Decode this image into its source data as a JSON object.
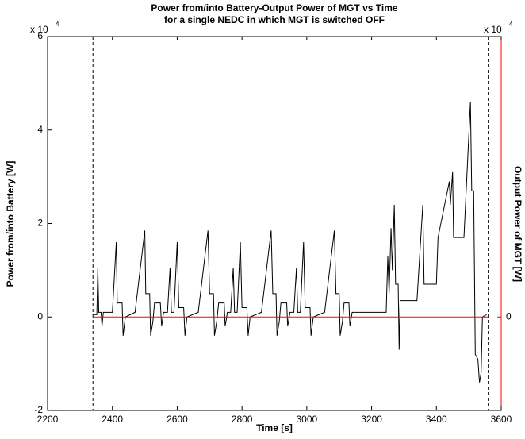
{
  "chart_data": {
    "type": "line",
    "title": [
      "Power from/into Battery-Output Power of MGT vs Time",
      "for a single NEDC in which MGT is switched OFF"
    ],
    "xlabel": "Time [s]",
    "ylabel": "Power from/into Battery [W]",
    "y2label": "Output Power of MGT [W]",
    "y_multiplier": {
      "base": "x 10",
      "power": "4"
    },
    "y2_multiplier": {
      "base": "x 10",
      "power": "4"
    },
    "xlim": [
      2200,
      3600
    ],
    "xticks": [
      2200,
      2400,
      2600,
      2800,
      3000,
      3200,
      3400,
      3600
    ],
    "ylim": [
      -2,
      6
    ],
    "yticks": [
      -2,
      0,
      2,
      4,
      6
    ],
    "y2lim": [
      -2,
      6
    ],
    "y2ticks": [
      0
    ],
    "y2color": "#ff0000",
    "vlines": [
      2340,
      3560
    ],
    "series": [
      {
        "name": "Power from/into Battery",
        "color": "#000000",
        "x": [
          2340,
          2352,
          2355,
          2358,
          2365,
          2368,
          2372,
          2400,
          2412,
          2415,
          2430,
          2433,
          2440,
          2470,
          2500,
          2503,
          2515,
          2518,
          2525,
          2530,
          2548,
          2552,
          2558,
          2570,
          2578,
          2582,
          2590,
          2600,
          2605,
          2620,
          2624,
          2630,
          2665,
          2695,
          2700,
          2712,
          2715,
          2722,
          2728,
          2745,
          2748,
          2755,
          2765,
          2773,
          2777,
          2785,
          2795,
          2800,
          2815,
          2819,
          2825,
          2860,
          2890,
          2895,
          2905,
          2908,
          2915,
          2920,
          2938,
          2941,
          2948,
          2960,
          2968,
          2972,
          2980,
          2990,
          2995,
          3010,
          3013,
          3020,
          3055,
          3085,
          3090,
          3100,
          3103,
          3110,
          3115,
          3130,
          3133,
          3140,
          3245,
          3250,
          3254,
          3260,
          3264,
          3270,
          3274,
          3282,
          3285,
          3288,
          3340,
          3358,
          3362,
          3400,
          3405,
          3440,
          3443,
          3450,
          3453,
          3485,
          3505,
          3509,
          3515,
          3520,
          3528,
          3533,
          3538,
          3542,
          3555
        ],
        "values": [
          0.05,
          0.05,
          1.05,
          0.1,
          0.1,
          -0.2,
          0.1,
          0.1,
          1.6,
          0.3,
          0.3,
          -0.4,
          0.0,
          0.1,
          1.85,
          0.5,
          0.5,
          -0.4,
          -0.1,
          0.3,
          0.3,
          -0.2,
          0.1,
          0.1,
          1.05,
          0.1,
          0.1,
          1.6,
          0.2,
          0.2,
          -0.4,
          0.0,
          0.1,
          1.85,
          0.5,
          0.5,
          -0.4,
          -0.1,
          0.3,
          0.3,
          -0.2,
          0.1,
          0.1,
          1.05,
          0.1,
          0.1,
          1.6,
          0.2,
          0.2,
          -0.4,
          0.0,
          0.1,
          1.85,
          0.5,
          0.5,
          -0.4,
          -0.1,
          0.3,
          0.3,
          -0.2,
          0.1,
          0.1,
          1.05,
          0.1,
          0.1,
          1.6,
          0.2,
          0.2,
          -0.4,
          0.0,
          0.1,
          1.85,
          0.5,
          0.5,
          -0.4,
          -0.1,
          0.3,
          0.3,
          -0.2,
          0.1,
          0.1,
          1.3,
          0.5,
          1.9,
          1.0,
          2.4,
          0.7,
          0.7,
          -0.7,
          0.35,
          0.35,
          2.4,
          0.7,
          0.7,
          1.7,
          2.9,
          2.4,
          3.1,
          1.7,
          1.7,
          4.6,
          2.7,
          2.7,
          -0.8,
          -0.9,
          -1.4,
          -1.2,
          0.0,
          0.05
        ]
      },
      {
        "name": "Output Power of MGT",
        "color": "#ff0000",
        "axis": "y2",
        "x": [
          2340,
          3560
        ],
        "values": [
          0,
          0
        ]
      }
    ]
  }
}
